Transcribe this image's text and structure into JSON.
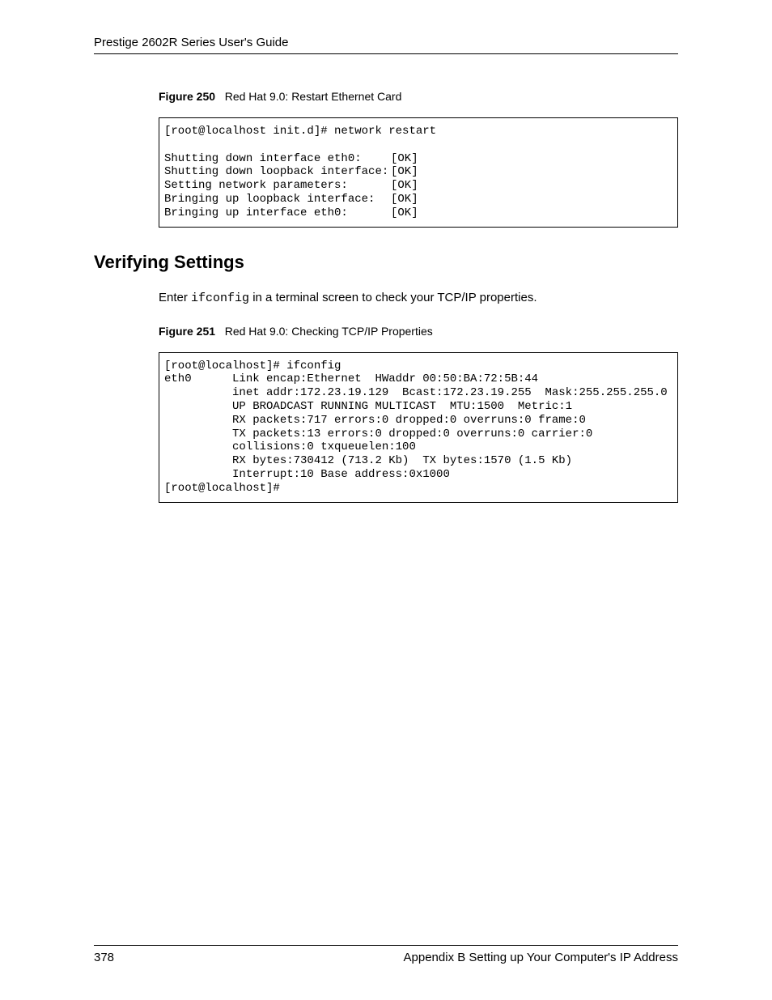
{
  "header": {
    "title": "Prestige 2602R Series User's Guide"
  },
  "figure250": {
    "label": "Figure 250",
    "caption": "Red Hat 9.0: Restart Ethernet Card",
    "prompt": "[root@localhost init.d]# network restart",
    "rows": [
      {
        "left": "Shutting down interface eth0:",
        "right": "[OK]"
      },
      {
        "left": "Shutting down loopback interface:",
        "right": "[OK]"
      },
      {
        "left": "Setting network parameters:",
        "right": "[OK]"
      },
      {
        "left": "Bringing up loopback interface:",
        "right": "[OK]"
      },
      {
        "left": "Bringing up interface eth0:",
        "right": "[OK]"
      }
    ]
  },
  "section": {
    "heading": "Verifying Settings",
    "para_pre": "Enter ",
    "para_cmd": "ifconfig",
    "para_post": " in a terminal screen to check your TCP/IP properties."
  },
  "figure251": {
    "label": "Figure 251",
    "caption": "Red Hat 9.0: Checking TCP/IP Properties",
    "lines": [
      "[root@localhost]# ifconfig ",
      "eth0      Link encap:Ethernet  HWaddr 00:50:BA:72:5B:44  ",
      "          inet addr:172.23.19.129  Bcast:172.23.19.255  Mask:255.255.255.0",
      "          UP BROADCAST RUNNING MULTICAST  MTU:1500  Metric:1",
      "          RX packets:717 errors:0 dropped:0 overruns:0 frame:0",
      "          TX packets:13 errors:0 dropped:0 overruns:0 carrier:0",
      "          collisions:0 txqueuelen:100 ",
      "          RX bytes:730412 (713.2 Kb)  TX bytes:1570 (1.5 Kb)",
      "          Interrupt:10 Base address:0x1000 ",
      "[root@localhost]#"
    ]
  },
  "footer": {
    "page_number": "378",
    "right_text": "Appendix B Setting up Your Computer's IP Address"
  }
}
